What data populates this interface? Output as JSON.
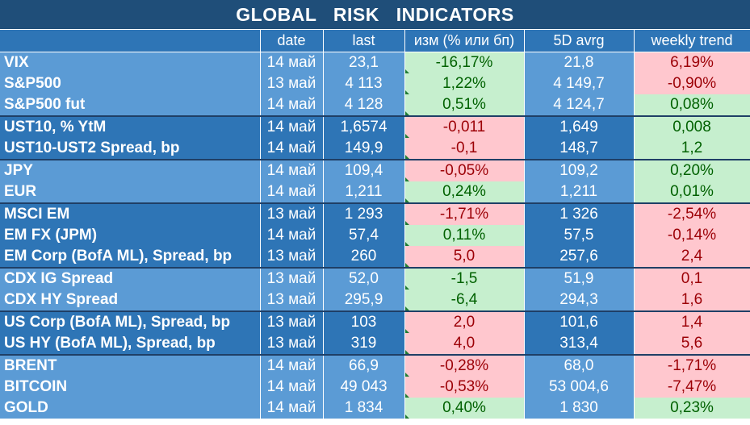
{
  "title": "GLOBAL RISK INDICATORS",
  "colors": {
    "header_dark": "#1f4e79",
    "header_row": "#2e75b6",
    "row_light": "#5b9bd5",
    "row_dark": "#2e75b6",
    "positive_bg": "#c6efce",
    "positive_text": "#006100",
    "negative_bg": "#ffc7ce",
    "negative_text": "#9c0006"
  },
  "columns": [
    "",
    "date",
    "last",
    "изм (% или бп)",
    "5D avrg",
    "weekly trend"
  ],
  "rows": [
    {
      "name": "VIX",
      "date": "14 май",
      "last": "23,1",
      "change": "-16,17%",
      "change_sign": "pos",
      "avg5d": "21,8",
      "trend": "6,19%",
      "trend_sign": "neg",
      "group": "a",
      "group_end": false
    },
    {
      "name": "S&P500",
      "date": "13 май",
      "last": "4 113",
      "change": "1,22%",
      "change_sign": "pos",
      "avg5d": "4 149,7",
      "trend": "-0,90%",
      "trend_sign": "neg",
      "group": "a",
      "group_end": false
    },
    {
      "name": "S&P500 fut",
      "date": "14 май",
      "last": "4 128",
      "change": "0,51%",
      "change_sign": "pos",
      "avg5d": "4 124,7",
      "trend": "0,08%",
      "trend_sign": "pos",
      "group": "a",
      "group_end": true
    },
    {
      "name": "UST10, % YtM",
      "date": "14 май",
      "last": "1,6574",
      "change": "-0,011",
      "change_sign": "neg",
      "avg5d": "1,649",
      "trend": "0,008",
      "trend_sign": "pos",
      "group": "b",
      "group_end": false
    },
    {
      "name": "UST10-UST2 Spread, bp",
      "date": "14 май",
      "last": "149,9",
      "change": "-0,1",
      "change_sign": "neg",
      "avg5d": "148,7",
      "trend": "1,2",
      "trend_sign": "pos",
      "group": "b",
      "group_end": true
    },
    {
      "name": "JPY",
      "date": "14 май",
      "last": "109,4",
      "change": "-0,05%",
      "change_sign": "neg",
      "avg5d": "109,2",
      "trend": "0,20%",
      "trend_sign": "pos",
      "group": "a",
      "group_end": false
    },
    {
      "name": "EUR",
      "date": "14 май",
      "last": "1,211",
      "change": "0,24%",
      "change_sign": "pos",
      "avg5d": "1,211",
      "trend": "0,01%",
      "trend_sign": "pos",
      "group": "a",
      "group_end": true
    },
    {
      "name": "MSCI EM",
      "date": "13 май",
      "last": "1 293",
      "change": "-1,71%",
      "change_sign": "neg",
      "avg5d": "1 326",
      "trend": "-2,54%",
      "trend_sign": "neg",
      "group": "b",
      "group_end": false
    },
    {
      "name": "EM FX (JPM)",
      "date": "14 май",
      "last": "57,4",
      "change": "0,11%",
      "change_sign": "pos",
      "avg5d": "57,5",
      "trend": "-0,14%",
      "trend_sign": "neg",
      "group": "b",
      "group_end": false
    },
    {
      "name": "EM Corp (BofA ML), Spread, bp",
      "date": "13 май",
      "last": "260",
      "change": "5,0",
      "change_sign": "neg",
      "avg5d": "257,6",
      "trend": "2,4",
      "trend_sign": "neg",
      "group": "b",
      "group_end": true
    },
    {
      "name": "CDX IG Spread",
      "date": "13 май",
      "last": "52,0",
      "change": "-1,5",
      "change_sign": "pos",
      "avg5d": "51,9",
      "trend": "0,1",
      "trend_sign": "neg",
      "group": "a",
      "group_end": false
    },
    {
      "name": "CDX HY Spread",
      "date": "13 май",
      "last": "295,9",
      "change": "-6,4",
      "change_sign": "pos",
      "avg5d": "294,3",
      "trend": "1,6",
      "trend_sign": "neg",
      "group": "a",
      "group_end": true
    },
    {
      "name": "US Corp (BofA ML), Spread, bp",
      "date": "13 май",
      "last": "103",
      "change": "2,0",
      "change_sign": "neg",
      "avg5d": "101,6",
      "trend": "1,4",
      "trend_sign": "neg",
      "group": "b",
      "group_end": false
    },
    {
      "name": "US HY (BofA ML), Spread, bp",
      "date": "13 май",
      "last": "319",
      "change": "4,0",
      "change_sign": "neg",
      "avg5d": "313,4",
      "trend": "5,6",
      "trend_sign": "neg",
      "group": "b",
      "group_end": true
    },
    {
      "name": "BRENT",
      "date": "14 май",
      "last": "66,9",
      "change": "-0,28%",
      "change_sign": "neg",
      "avg5d": "68,0",
      "trend": "-1,71%",
      "trend_sign": "neg",
      "group": "a",
      "group_end": false
    },
    {
      "name": "BITCOIN",
      "date": "14 май",
      "last": "49 043",
      "change": "-0,53%",
      "change_sign": "neg",
      "avg5d": "53 004,6",
      "trend": "-7,47%",
      "trend_sign": "neg",
      "group": "a",
      "group_end": false
    },
    {
      "name": "GOLD",
      "date": "14 май",
      "last": "1 834",
      "change": "0,40%",
      "change_sign": "pos",
      "avg5d": "1 830",
      "trend": "0,23%",
      "trend_sign": "pos",
      "group": "a",
      "group_end": false
    }
  ]
}
